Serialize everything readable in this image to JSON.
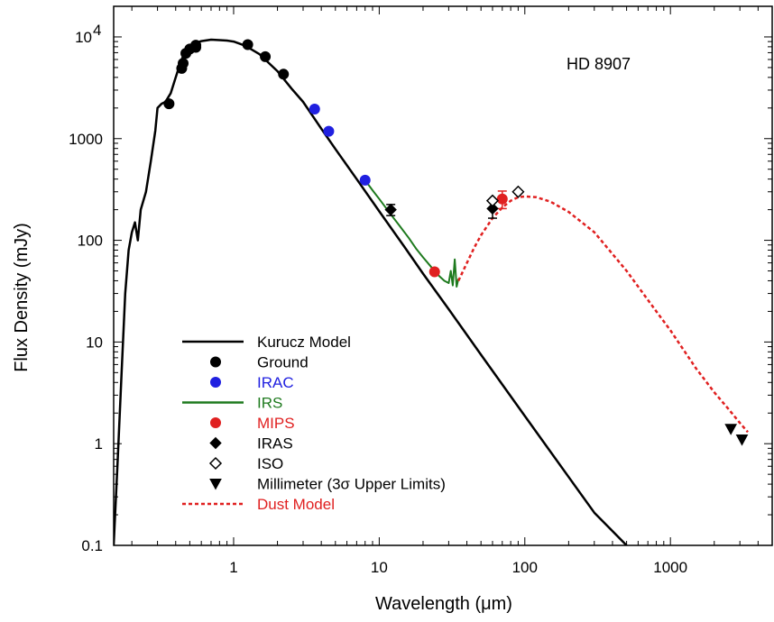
{
  "chart_data": {
    "type": "line",
    "object_label": "HD 8907",
    "xlabel": "Wavelength (μm)",
    "ylabel": "Flux Density (mJy)",
    "xscale": "log",
    "yscale": "log",
    "xlim": [
      0.15,
      5000
    ],
    "ylim": [
      0.1,
      20000
    ],
    "xticks": [
      {
        "value": 1,
        "label": "1"
      },
      {
        "value": 10,
        "label": "10"
      },
      {
        "value": 100,
        "label": "100"
      },
      {
        "value": 1000,
        "label": "1000"
      }
    ],
    "yticks": [
      {
        "value": 0.1,
        "label": "0.1"
      },
      {
        "value": 1,
        "label": "1"
      },
      {
        "value": 10,
        "label": "10"
      },
      {
        "value": 100,
        "label": "100"
      },
      {
        "value": 1000,
        "label": "1000"
      },
      {
        "value": 10000,
        "label": "10",
        "sup": "4"
      }
    ],
    "legend_position": "bottom-left",
    "series": [
      {
        "name": "Kurucz Model",
        "kind": "line",
        "color": "#000000",
        "style": "solid",
        "x": [
          0.15,
          0.16,
          0.17,
          0.18,
          0.19,
          0.2,
          0.21,
          0.22,
          0.23,
          0.25,
          0.27,
          0.29,
          0.3,
          0.32,
          0.34,
          0.37,
          0.4,
          0.43,
          0.46,
          0.5,
          0.55,
          0.6,
          0.7,
          0.8,
          0.9,
          1.0,
          1.2,
          1.5,
          2.0,
          2.5,
          3.0,
          4.0,
          5.0,
          7.0,
          10,
          15,
          20,
          30,
          50,
          100,
          200,
          300,
          500
        ],
        "y": [
          0.1,
          0.7,
          5,
          30,
          80,
          120,
          150,
          100,
          200,
          300,
          600,
          1200,
          2000,
          2200,
          2300,
          2800,
          4000,
          5500,
          7000,
          8000,
          8700,
          9100,
          9400,
          9300,
          9200,
          9000,
          8200,
          6800,
          4600,
          3100,
          2300,
          1250,
          790,
          400,
          193,
          85,
          47,
          21,
          7.5,
          1.87,
          0.47,
          0.21,
          0.1
        ]
      },
      {
        "name": "Ground",
        "kind": "points",
        "color": "#000000",
        "marker": "circle",
        "x": [
          0.36,
          0.44,
          0.45,
          0.47,
          0.5,
          0.55,
          0.55,
          1.25,
          1.65,
          2.2
        ],
        "y": [
          2200,
          4900,
          5500,
          6900,
          7600,
          7900,
          8300,
          8400,
          6400,
          4300
        ]
      },
      {
        "name": "IRAC",
        "kind": "points",
        "color": "#2020e0",
        "marker": "circle",
        "x": [
          3.6,
          4.5,
          8.0
        ],
        "y": [
          1950,
          1180,
          390
        ]
      },
      {
        "name": "IRS",
        "kind": "line",
        "color": "#1e7a1e",
        "style": "solid",
        "x": [
          7.5,
          8,
          9,
          10,
          12,
          14,
          16,
          18,
          20,
          22,
          24,
          26,
          28,
          30,
          31,
          32,
          33,
          34,
          35
        ],
        "y": [
          420,
          390,
          310,
          255,
          180,
          135,
          105,
          82,
          68,
          58,
          50,
          44,
          40,
          38,
          50,
          36,
          65,
          35,
          42
        ]
      },
      {
        "name": "MIPS",
        "kind": "points",
        "color": "#e02020",
        "marker": "circle",
        "x": [
          24,
          70
        ],
        "y": [
          49,
          255
        ],
        "yerr": [
          2,
          50
        ]
      },
      {
        "name": "IRAS",
        "kind": "points",
        "color": "#000000",
        "marker": "diamond",
        "x": [
          12,
          60
        ],
        "y": [
          200,
          205
        ],
        "yerr": [
          25,
          40
        ]
      },
      {
        "name": "ISO",
        "kind": "points",
        "color": "#000000",
        "marker": "diamond-open",
        "x": [
          60,
          90
        ],
        "y": [
          245,
          300
        ]
      },
      {
        "name": "Millimeter (3σ  Upper Limits)",
        "kind": "points",
        "color": "#000000",
        "marker": "triangle-down",
        "x": [
          2600,
          3100
        ],
        "y": [
          1.4,
          1.1
        ]
      },
      {
        "name": "Dust Model",
        "kind": "line",
        "color": "#e02020",
        "style": "dotted",
        "x": [
          35,
          40,
          45,
          50,
          60,
          70,
          80,
          90,
          100,
          120,
          150,
          200,
          300,
          500,
          800,
          1000,
          1500,
          2000,
          2500,
          3000,
          3400
        ],
        "y": [
          40,
          60,
          85,
          112,
          165,
          210,
          245,
          265,
          270,
          265,
          240,
          190,
          120,
          50,
          20,
          13,
          5.5,
          3.2,
          2.2,
          1.6,
          1.3
        ]
      }
    ]
  }
}
